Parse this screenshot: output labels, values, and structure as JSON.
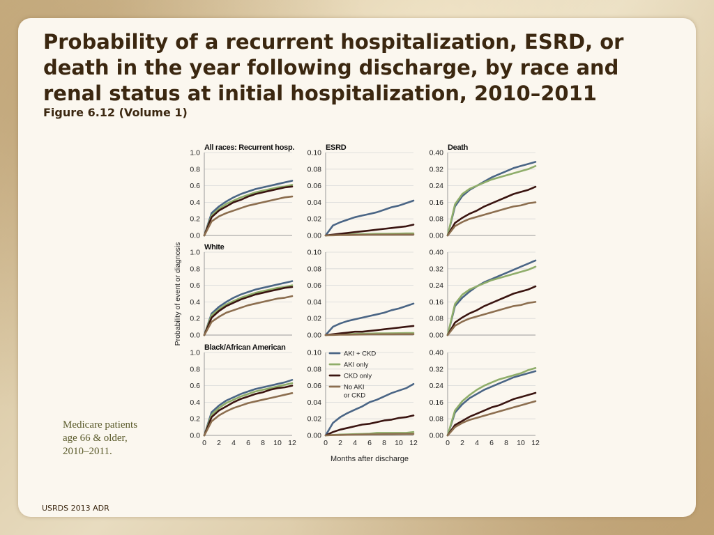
{
  "slide": {
    "title": "Probability of a recurrent hospitalization, ESRD, or death in the year following discharge, by race and renal status at initial hospitalization, 2010–2011",
    "subtitle": "Figure 6.12 (Volume 1)",
    "note_lines": [
      "Medicare patients",
      "age 66 & older,",
      "2010–2011."
    ],
    "footer": "USRDS 2013 ADR"
  },
  "chart_data": {
    "type": "line",
    "ylabel": "Probability of event or diagnosis",
    "xlabel": "Months after discharge",
    "x_ticks": [
      "0",
      "2",
      "4",
      "6",
      "8",
      "10",
      "12"
    ],
    "x": [
      0,
      1,
      2,
      3,
      4,
      5,
      6,
      7,
      8,
      9,
      10,
      11,
      12
    ],
    "legend": [
      {
        "label_lines": [
          "AKI + CKD"
        ],
        "color": "#4a6585"
      },
      {
        "label_lines": [
          "AKI only"
        ],
        "color": "#8fad6a"
      },
      {
        "label_lines": [
          "CKD only"
        ],
        "color": "#3a1410"
      },
      {
        "label_lines": [
          "No AKI",
          "or CKD"
        ],
        "color": "#8c6e4f"
      }
    ],
    "columns": [
      {
        "ylim": [
          0,
          1.0
        ],
        "y_ticks": [
          "0.0",
          "0.2",
          "0.4",
          "0.6",
          "0.8",
          "1.0"
        ]
      },
      {
        "ylim": [
          0,
          0.1
        ],
        "y_ticks": [
          "0.00",
          "0.02",
          "0.04",
          "0.06",
          "0.08",
          "0.10"
        ]
      },
      {
        "ylim": [
          0,
          0.4
        ],
        "y_ticks": [
          "0.00",
          "0.08",
          "0.16",
          "0.24",
          "0.32",
          "0.40"
        ]
      }
    ],
    "panels": [
      {
        "row": 0,
        "col": 0,
        "title": "All races: Recurrent hosp.",
        "series": [
          {
            "name": "AKI + CKD",
            "values": [
              0,
              0.27,
              0.35,
              0.41,
              0.46,
              0.5,
              0.53,
              0.56,
              0.58,
              0.6,
              0.62,
              0.64,
              0.66
            ]
          },
          {
            "name": "AKI only",
            "values": [
              0,
              0.24,
              0.32,
              0.38,
              0.42,
              0.46,
              0.49,
              0.52,
              0.54,
              0.56,
              0.58,
              0.59,
              0.61
            ]
          },
          {
            "name": "CKD only",
            "values": [
              0,
              0.22,
              0.3,
              0.35,
              0.4,
              0.43,
              0.47,
              0.5,
              0.52,
              0.54,
              0.56,
              0.58,
              0.59
            ]
          },
          {
            "name": "No AKI or CKD",
            "values": [
              0,
              0.17,
              0.23,
              0.27,
              0.3,
              0.33,
              0.36,
              0.38,
              0.4,
              0.42,
              0.44,
              0.46,
              0.47
            ]
          }
        ]
      },
      {
        "row": 0,
        "col": 1,
        "title": "ESRD",
        "series": [
          {
            "name": "AKI + CKD",
            "values": [
              0,
              0.012,
              0.016,
              0.019,
              0.022,
              0.024,
              0.026,
              0.028,
              0.031,
              0.034,
              0.036,
              0.039,
              0.042
            ]
          },
          {
            "name": "AKI only",
            "values": [
              0,
              0.0005,
              0.001,
              0.0012,
              0.0014,
              0.0016,
              0.0018,
              0.002,
              0.002,
              0.0022,
              0.0023,
              0.0024,
              0.0025
            ]
          },
          {
            "name": "CKD only",
            "values": [
              0,
              0.001,
              0.002,
              0.003,
              0.004,
              0.005,
              0.006,
              0.007,
              0.008,
              0.009,
              0.01,
              0.011,
              0.013
            ]
          },
          {
            "name": "No AKI or CKD",
            "values": [
              0,
              0.0002,
              0.0004,
              0.0005,
              0.0006,
              0.0007,
              0.0008,
              0.0008,
              0.0009,
              0.0009,
              0.001,
              0.001,
              0.001
            ]
          }
        ]
      },
      {
        "row": 0,
        "col": 2,
        "title": "Death",
        "series": [
          {
            "name": "AKI + CKD",
            "values": [
              0,
              0.14,
              0.19,
              0.22,
              0.24,
              0.26,
              0.28,
              0.295,
              0.31,
              0.325,
              0.335,
              0.345,
              0.355
            ]
          },
          {
            "name": "AKI only",
            "values": [
              0,
              0.15,
              0.2,
              0.225,
              0.24,
              0.255,
              0.27,
              0.28,
              0.29,
              0.3,
              0.31,
              0.32,
              0.335
            ]
          },
          {
            "name": "CKD only",
            "values": [
              0,
              0.06,
              0.085,
              0.105,
              0.12,
              0.14,
              0.155,
              0.17,
              0.185,
              0.2,
              0.21,
              0.22,
              0.235
            ]
          },
          {
            "name": "No AKI or CKD",
            "values": [
              0,
              0.045,
              0.065,
              0.08,
              0.09,
              0.1,
              0.11,
              0.12,
              0.13,
              0.14,
              0.145,
              0.155,
              0.16
            ]
          }
        ]
      },
      {
        "row": 1,
        "col": 0,
        "title": "White",
        "series": [
          {
            "name": "AKI + CKD",
            "values": [
              0,
              0.26,
              0.34,
              0.4,
              0.45,
              0.49,
              0.52,
              0.55,
              0.57,
              0.59,
              0.61,
              0.63,
              0.65
            ]
          },
          {
            "name": "AKI only",
            "values": [
              0,
              0.24,
              0.31,
              0.37,
              0.41,
              0.45,
              0.48,
              0.51,
              0.53,
              0.55,
              0.57,
              0.58,
              0.6
            ]
          },
          {
            "name": "CKD only",
            "values": [
              0,
              0.21,
              0.29,
              0.35,
              0.39,
              0.43,
              0.46,
              0.49,
              0.51,
              0.53,
              0.55,
              0.57,
              0.58
            ]
          },
          {
            "name": "No AKI or CKD",
            "values": [
              0,
              0.16,
              0.22,
              0.27,
              0.3,
              0.33,
              0.36,
              0.38,
              0.4,
              0.42,
              0.44,
              0.45,
              0.47
            ]
          }
        ]
      },
      {
        "row": 1,
        "col": 1,
        "title": "",
        "series": [
          {
            "name": "AKI + CKD",
            "values": [
              0,
              0.01,
              0.014,
              0.017,
              0.019,
              0.021,
              0.023,
              0.025,
              0.027,
              0.03,
              0.032,
              0.035,
              0.038
            ]
          },
          {
            "name": "AKI only",
            "values": [
              0,
              0.0005,
              0.001,
              0.0012,
              0.0014,
              0.0016,
              0.0018,
              0.002,
              0.002,
              0.0022,
              0.0023,
              0.0024,
              0.0025
            ]
          },
          {
            "name": "CKD only",
            "values": [
              0,
              0.001,
              0.002,
              0.003,
              0.004,
              0.004,
              0.005,
              0.006,
              0.007,
              0.008,
              0.009,
              0.01,
              0.011
            ]
          },
          {
            "name": "No AKI or CKD",
            "values": [
              0,
              0.0002,
              0.0004,
              0.0005,
              0.0006,
              0.0007,
              0.0008,
              0.0008,
              0.0009,
              0.0009,
              0.001,
              0.001,
              0.001
            ]
          }
        ]
      },
      {
        "row": 1,
        "col": 2,
        "title": "",
        "series": [
          {
            "name": "AKI + CKD",
            "values": [
              0,
              0.14,
              0.18,
              0.21,
              0.235,
              0.255,
              0.27,
              0.285,
              0.3,
              0.315,
              0.33,
              0.345,
              0.36
            ]
          },
          {
            "name": "AKI only",
            "values": [
              0,
              0.15,
              0.195,
              0.22,
              0.235,
              0.25,
              0.265,
              0.275,
              0.285,
              0.295,
              0.305,
              0.315,
              0.33
            ]
          },
          {
            "name": "CKD only",
            "values": [
              0,
              0.06,
              0.085,
              0.105,
              0.12,
              0.14,
              0.155,
              0.17,
              0.185,
              0.2,
              0.21,
              0.22,
              0.235
            ]
          },
          {
            "name": "No AKI or CKD",
            "values": [
              0,
              0.045,
              0.065,
              0.08,
              0.09,
              0.1,
              0.11,
              0.12,
              0.13,
              0.14,
              0.145,
              0.155,
              0.16
            ]
          }
        ]
      },
      {
        "row": 2,
        "col": 0,
        "title": "Black/African American",
        "series": [
          {
            "name": "AKI + CKD",
            "values": [
              0,
              0.28,
              0.36,
              0.42,
              0.46,
              0.5,
              0.53,
              0.56,
              0.58,
              0.6,
              0.62,
              0.64,
              0.67
            ]
          },
          {
            "name": "AKI only",
            "values": [
              0,
              0.25,
              0.33,
              0.39,
              0.43,
              0.47,
              0.5,
              0.53,
              0.55,
              0.57,
              0.59,
              0.61,
              0.63
            ]
          },
          {
            "name": "CKD only",
            "values": [
              0,
              0.22,
              0.3,
              0.35,
              0.4,
              0.44,
              0.47,
              0.5,
              0.52,
              0.55,
              0.57,
              0.58,
              0.6
            ]
          },
          {
            "name": "No AKI or CKD",
            "values": [
              0,
              0.17,
              0.24,
              0.29,
              0.33,
              0.36,
              0.39,
              0.41,
              0.43,
              0.45,
              0.47,
              0.49,
              0.51
            ]
          }
        ]
      },
      {
        "row": 2,
        "col": 1,
        "title": "",
        "series": [
          {
            "name": "AKI + CKD",
            "values": [
              0,
              0.015,
              0.022,
              0.027,
              0.031,
              0.035,
              0.04,
              0.043,
              0.047,
              0.051,
              0.054,
              0.057,
              0.062
            ]
          },
          {
            "name": "AKI only",
            "values": [
              0,
              0.0005,
              0.001,
              0.0012,
              0.0015,
              0.0018,
              0.002,
              0.003,
              0.003,
              0.003,
              0.003,
              0.003,
              0.004
            ]
          },
          {
            "name": "CKD only",
            "values": [
              0,
              0.004,
              0.007,
              0.009,
              0.011,
              0.013,
              0.014,
              0.016,
              0.018,
              0.019,
              0.021,
              0.022,
              0.024
            ]
          },
          {
            "name": "No AKI or CKD",
            "values": [
              0,
              0.0003,
              0.0005,
              0.0007,
              0.0008,
              0.001,
              0.0012,
              0.0013,
              0.0014,
              0.0015,
              0.0016,
              0.0017,
              0.0018
            ]
          }
        ]
      },
      {
        "row": 2,
        "col": 2,
        "title": "",
        "series": [
          {
            "name": "AKI + CKD",
            "values": [
              0,
              0.11,
              0.15,
              0.18,
              0.2,
              0.22,
              0.235,
              0.25,
              0.265,
              0.28,
              0.29,
              0.3,
              0.31
            ]
          },
          {
            "name": "AKI only",
            "values": [
              0,
              0.12,
              0.165,
              0.195,
              0.22,
              0.24,
              0.255,
              0.27,
              0.28,
              0.29,
              0.3,
              0.315,
              0.325
            ]
          },
          {
            "name": "CKD only",
            "values": [
              0,
              0.05,
              0.07,
              0.09,
              0.105,
              0.12,
              0.135,
              0.145,
              0.16,
              0.175,
              0.185,
              0.195,
              0.205
            ]
          },
          {
            "name": "No AKI or CKD",
            "values": [
              0,
              0.04,
              0.06,
              0.075,
              0.085,
              0.095,
              0.105,
              0.115,
              0.125,
              0.135,
              0.145,
              0.155,
              0.165
            ]
          }
        ]
      }
    ]
  }
}
